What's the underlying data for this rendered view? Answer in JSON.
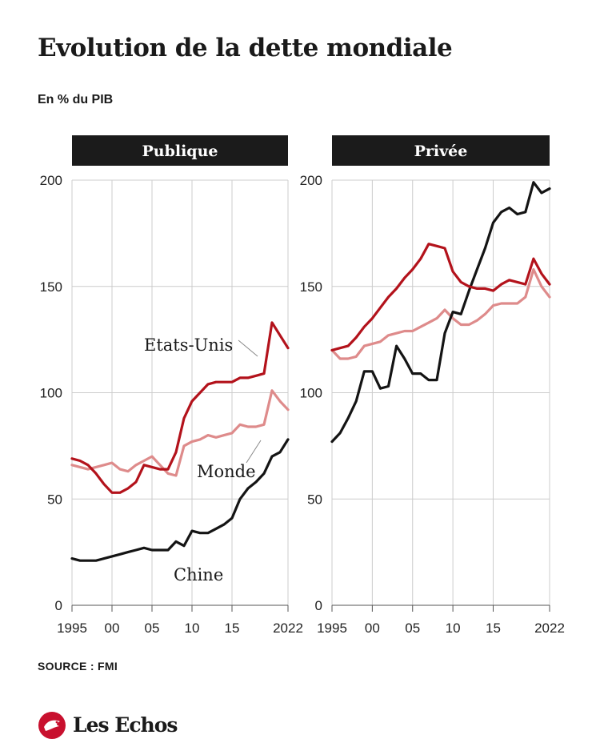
{
  "header": {
    "title": "Evolution de la dette mondiale",
    "subtitle": "En % du PIB"
  },
  "footer": {
    "source": "SOURCE : FMI",
    "brand": "Les Echos"
  },
  "colors": {
    "etats_unis": "#b3121b",
    "monde": "#de8b8b",
    "chine": "#141414",
    "panel_header_bg": "#1b1b1b",
    "grid": "#cccccc"
  },
  "chart_data": [
    {
      "type": "line",
      "title": "Publique",
      "ylim": [
        0,
        200
      ],
      "yticks": [
        0,
        50,
        100,
        150,
        200
      ],
      "xlim": [
        1995,
        2022
      ],
      "xticks": [
        {
          "value": 1995,
          "label": "1995"
        },
        {
          "value": 2000,
          "label": "00"
        },
        {
          "value": 2005,
          "label": "05"
        },
        {
          "value": 2010,
          "label": "10"
        },
        {
          "value": 2015,
          "label": "15"
        },
        {
          "value": 2022,
          "label": "2022"
        }
      ],
      "grid": true,
      "series": [
        {
          "name": "Etats-Unis",
          "color_key": "etats_unis",
          "x": [
            1995,
            1996,
            1997,
            1998,
            1999,
            2000,
            2001,
            2002,
            2003,
            2004,
            2005,
            2006,
            2007,
            2008,
            2009,
            2010,
            2011,
            2012,
            2013,
            2014,
            2015,
            2016,
            2017,
            2018,
            2019,
            2020,
            2021,
            2022
          ],
          "y": [
            69,
            68,
            66,
            62,
            57,
            53,
            53,
            55,
            58,
            66,
            65,
            64,
            64,
            72,
            88,
            96,
            100,
            104,
            105,
            105,
            105,
            107,
            107,
            108,
            109,
            133,
            127,
            121
          ]
        },
        {
          "name": "Monde",
          "color_key": "monde",
          "x": [
            1995,
            1996,
            1997,
            1998,
            1999,
            2000,
            2001,
            2002,
            2003,
            2004,
            2005,
            2006,
            2007,
            2008,
            2009,
            2010,
            2011,
            2012,
            2013,
            2014,
            2015,
            2016,
            2017,
            2018,
            2019,
            2020,
            2021,
            2022
          ],
          "y": [
            66,
            65,
            64,
            65,
            66,
            67,
            64,
            63,
            66,
            68,
            70,
            66,
            62,
            61,
            75,
            77,
            78,
            80,
            79,
            80,
            81,
            85,
            84,
            84,
            85,
            101,
            96,
            92
          ]
        },
        {
          "name": "Chine",
          "color_key": "chine",
          "x": [
            1995,
            1996,
            1997,
            1998,
            1999,
            2000,
            2001,
            2002,
            2003,
            2004,
            2005,
            2006,
            2007,
            2008,
            2009,
            2010,
            2011,
            2012,
            2013,
            2014,
            2015,
            2016,
            2017,
            2018,
            2019,
            2020,
            2021,
            2022
          ],
          "y": [
            22,
            21,
            21,
            21,
            22,
            23,
            24,
            25,
            26,
            27,
            26,
            26,
            26,
            30,
            28,
            35,
            34,
            34,
            36,
            38,
            41,
            50,
            55,
            58,
            62,
            70,
            72,
            78
          ]
        }
      ],
      "annotations": [
        "Etats-Unis",
        "Monde",
        "Chine"
      ]
    },
    {
      "type": "line",
      "title": "Privée",
      "ylim": [
        0,
        200
      ],
      "yticks": [
        0,
        50,
        100,
        150,
        200
      ],
      "xlim": [
        1995,
        2022
      ],
      "xticks": [
        {
          "value": 1995,
          "label": "1995"
        },
        {
          "value": 2000,
          "label": "00"
        },
        {
          "value": 2005,
          "label": "05"
        },
        {
          "value": 2010,
          "label": "10"
        },
        {
          "value": 2015,
          "label": "15"
        },
        {
          "value": 2022,
          "label": "2022"
        }
      ],
      "grid": true,
      "series": [
        {
          "name": "Etats-Unis",
          "color_key": "etats_unis",
          "x": [
            1995,
            1996,
            1997,
            1998,
            1999,
            2000,
            2001,
            2002,
            2003,
            2004,
            2005,
            2006,
            2007,
            2008,
            2009,
            2010,
            2011,
            2012,
            2013,
            2014,
            2015,
            2016,
            2017,
            2018,
            2019,
            2020,
            2021,
            2022
          ],
          "y": [
            120,
            121,
            122,
            126,
            131,
            135,
            140,
            145,
            149,
            154,
            158,
            163,
            170,
            169,
            168,
            157,
            152,
            150,
            149,
            149,
            148,
            151,
            153,
            152,
            151,
            163,
            156,
            151
          ]
        },
        {
          "name": "Monde",
          "color_key": "monde",
          "x": [
            1995,
            1996,
            1997,
            1998,
            1999,
            2000,
            2001,
            2002,
            2003,
            2004,
            2005,
            2006,
            2007,
            2008,
            2009,
            2010,
            2011,
            2012,
            2013,
            2014,
            2015,
            2016,
            2017,
            2018,
            2019,
            2020,
            2021,
            2022
          ],
          "y": [
            120,
            116,
            116,
            117,
            122,
            123,
            124,
            127,
            128,
            129,
            129,
            131,
            133,
            135,
            139,
            135,
            132,
            132,
            134,
            137,
            141,
            142,
            142,
            142,
            145,
            158,
            150,
            145
          ]
        },
        {
          "name": "Chine",
          "color_key": "chine",
          "x": [
            1995,
            1996,
            1997,
            1998,
            1999,
            2000,
            2001,
            2002,
            2003,
            2004,
            2005,
            2006,
            2007,
            2008,
            2009,
            2010,
            2011,
            2012,
            2013,
            2014,
            2015,
            2016,
            2017,
            2018,
            2019,
            2020,
            2021,
            2022
          ],
          "y": [
            77,
            81,
            88,
            96,
            110,
            110,
            102,
            103,
            122,
            116,
            109,
            109,
            106,
            106,
            128,
            138,
            137,
            148,
            158,
            168,
            180,
            185,
            187,
            184,
            185,
            199,
            194,
            196
          ]
        }
      ]
    }
  ]
}
